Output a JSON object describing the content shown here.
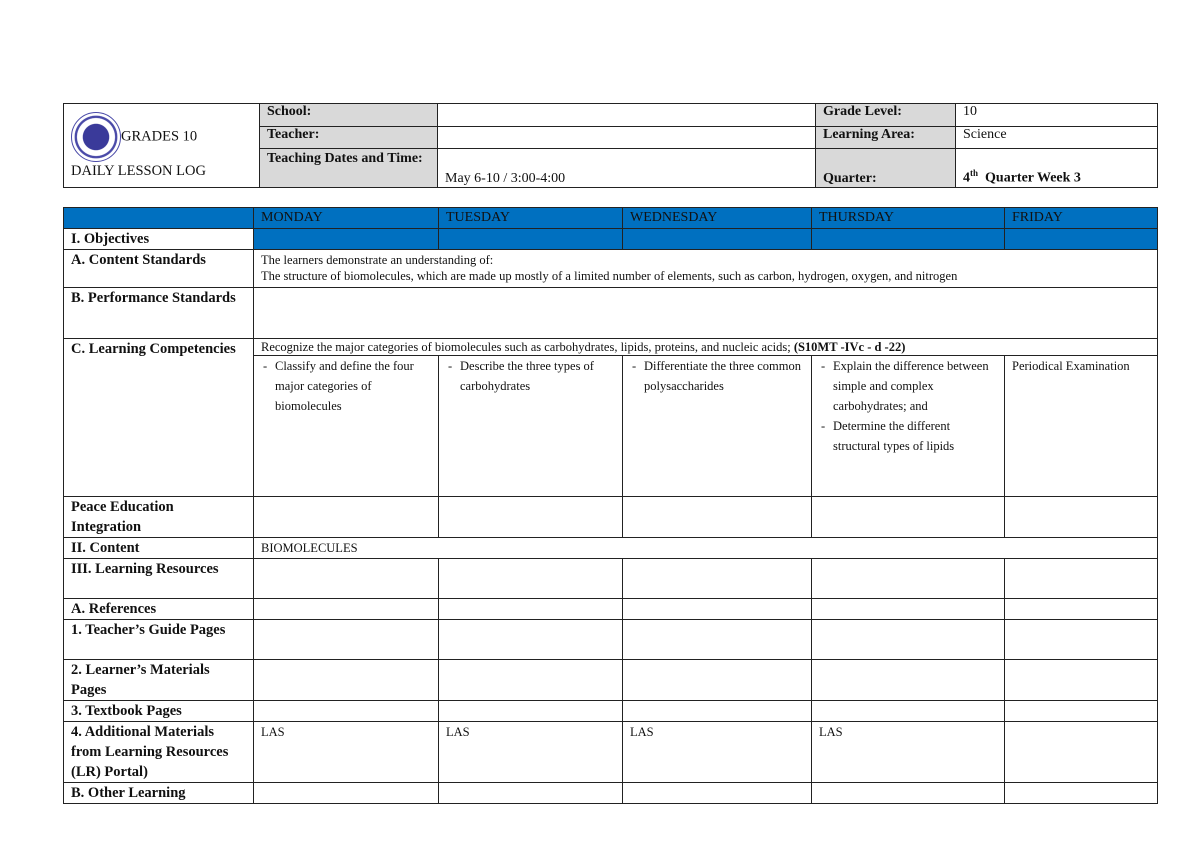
{
  "header": {
    "title_line1": "GRADES 10",
    "title_line2": "DAILY LESSON LOG",
    "logo": "deped-seal",
    "school_label": "School:",
    "school_value": "",
    "grade_label": "Grade Level:",
    "grade_value": "10",
    "teacher_label": "Teacher:",
    "teacher_value": "",
    "area_label": "Learning Area:",
    "area_value": "Science",
    "dates_label": "Teaching Dates and Time:",
    "dates_value": "May 6-10 / 3:00-4:00",
    "quarter_label": "Quarter:",
    "quarter_num": "4",
    "quarter_sup": "th",
    "quarter_rest": "Quarter Week 3"
  },
  "days": [
    "MONDAY",
    "TUESDAY",
    "WEDNESDAY",
    "THURSDAY",
    "FRIDAY"
  ],
  "colors": {
    "header_blue": "#0070c0",
    "label_gray": "#d9d9d9"
  },
  "rows": {
    "objectives": "I. Objectives",
    "content_standards": "A.  Content Standards",
    "content_standards_text1": "The learners demonstrate an understanding of:",
    "content_standards_text2": "The structure of biomolecules, which are made up mostly of a limited number of elements, such as carbon, hydrogen, oxygen, and nitrogen",
    "performance": "B. Performance Standards",
    "competencies": "C. Learning Competencies",
    "competencies_text": "Recognize the major categories of biomolecules such as carbohydrates, lipids, proteins, and nucleic acids;",
    "competencies_code": "(S10MT -IVc - d -22)",
    "mon": [
      "Classify and define the four major categories of biomolecules"
    ],
    "tue": [
      "Describe the three types of carbohydrates"
    ],
    "wed": [
      "Differentiate the three common polysaccharides"
    ],
    "thu": [
      "Explain the difference between simple and complex carbohydrates; and",
      "Determine the different structural types of lipids"
    ],
    "fri": "Periodical Examination",
    "peace": "Peace Education Integration",
    "content": "II. Content",
    "content_text": "BIOMOLECULES",
    "resources": "III. Learning Resources",
    "references": "A. References",
    "tg": "1. Teacher’s Guide Pages",
    "lm": "2. Learner’s Materials Pages",
    "tb": "3. Textbook Pages",
    "additional": "4. Additional Materials from Learning Resources (LR) Portal)",
    "las": "LAS",
    "other": "B. Other Learning"
  }
}
